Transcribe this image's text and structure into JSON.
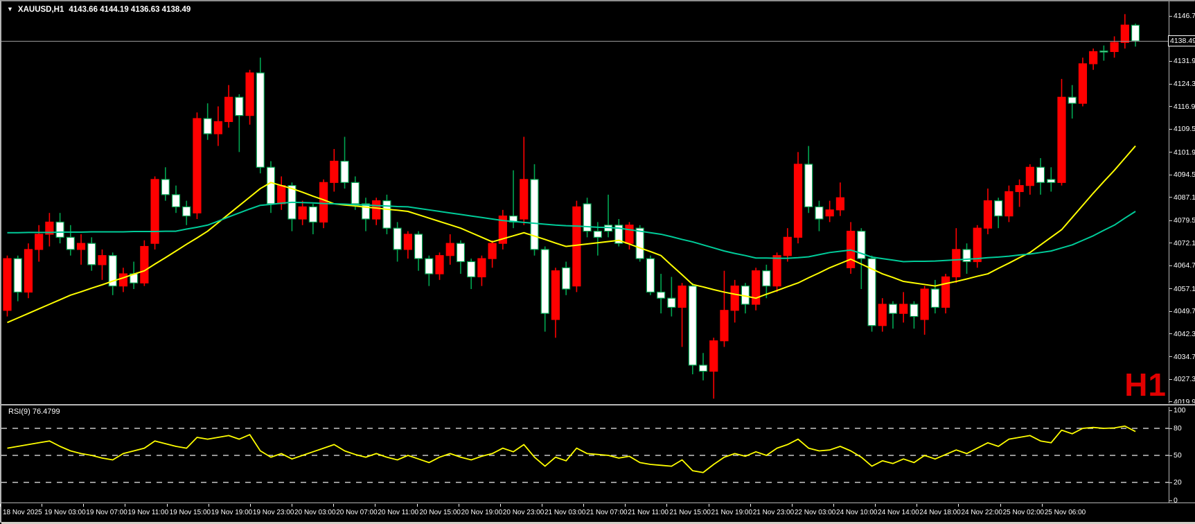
{
  "window": {
    "title": {
      "dropdown_icon": "▼",
      "symbol_period": "XAUUSD,H1",
      "ohlc": "4143.66 4144.19 4136.63 4138.49"
    },
    "watermark": "H1"
  },
  "rsi_panel": {
    "label": "RSI(9) 76.4799"
  },
  "price_box": "4138.49",
  "colors": {
    "background": "#000000",
    "bull_candle": "#ff0000",
    "bear_candle_fill": "#ffffff",
    "bear_candle_border": "#00a651",
    "ma_yellow": "#ffff00",
    "ma_green": "#00cc99",
    "rsi_line": "#ffff00",
    "level_dash": "#c8c8c8",
    "current_price_line": "#9b9b9b",
    "axis_text": "#ffffff",
    "watermark_red": "#e10000"
  },
  "chart_data": {
    "type": "candlestick",
    "symbol": "XAUUSD",
    "timeframe": "H1",
    "title": "XAUUSD,H1 4143.66 4144.19 4136.63 4138.49",
    "ohlc_quote": {
      "open": 4143.66,
      "high": 4144.19,
      "low": 4136.63,
      "close": 4138.49
    },
    "current_price": 4138.49,
    "note": "red body = up candle, white body with green border = down candle",
    "y_axis": {
      "tick_labels": [
        "4146.70",
        "4131.90",
        "4124.30",
        "4116.90",
        "4109.50",
        "4101.90",
        "4094.50",
        "4087.10",
        "4079.50",
        "4072.10",
        "4064.70",
        "4057.10",
        "4049.70",
        "4042.30",
        "4034.70",
        "4027.30",
        "4019.90"
      ],
      "visible_range": [
        4018.0,
        4151.0
      ]
    },
    "x_axis": {
      "labels": [
        "18 Nov 2025",
        "19 Nov 03:00",
        "19 Nov 07:00",
        "19 Nov 11:00",
        "19 Nov 15:00",
        "19 Nov 19:00",
        "19 Nov 23:00",
        "20 Nov 03:00",
        "20 Nov 07:00",
        "20 Nov 11:00",
        "20 Nov 15:00",
        "20 Nov 19:00",
        "20 Nov 23:00",
        "21 Nov 03:00",
        "21 Nov 07:00",
        "21 Nov 11:00",
        "21 Nov 15:00",
        "21 Nov 19:00",
        "21 Nov 23:00",
        "22 Nov 03:00",
        "24 Nov 10:00",
        "24 Nov 14:00",
        "24 Nov 18:00",
        "24 Nov 22:00",
        "25 Nov 02:00",
        "25 Nov 06:00"
      ]
    },
    "candles": [
      [
        4050,
        4068,
        4048,
        4067
      ],
      [
        4067,
        4068,
        4053,
        4056
      ],
      [
        4056,
        4072,
        4054,
        4070
      ],
      [
        4070,
        4078,
        4066,
        4075
      ],
      [
        4075,
        4082,
        4071,
        4079
      ],
      [
        4079,
        4082,
        4072,
        4074
      ],
      [
        4074,
        4078,
        4068,
        4070
      ],
      [
        4070,
        4075,
        4065,
        4072
      ],
      [
        4072,
        4074,
        4063,
        4065
      ],
      [
        4065,
        4070,
        4060,
        4068
      ],
      [
        4068,
        4069,
        4055,
        4058
      ],
      [
        4058,
        4064,
        4056,
        4062
      ],
      [
        4062,
        4066,
        4057,
        4059
      ],
      [
        4059,
        4073,
        4058,
        4071
      ],
      [
        4072,
        4094,
        4070,
        4093
      ],
      [
        4093,
        4097,
        4086,
        4088
      ],
      [
        4088,
        4091,
        4082,
        4084
      ],
      [
        4084,
        4086,
        4078,
        4081
      ],
      [
        4082,
        4115,
        4080,
        4113
      ],
      [
        4113,
        4118,
        4106,
        4108
      ],
      [
        4108,
        4117,
        4104,
        4112
      ],
      [
        4112,
        4124,
        4110,
        4120
      ],
      [
        4120,
        4121,
        4102,
        4114
      ],
      [
        4114,
        4129,
        4111,
        4128
      ],
      [
        4128,
        4133,
        4095,
        4097
      ],
      [
        4097,
        4099,
        4082,
        4085
      ],
      [
        4085,
        4094,
        4083,
        4091
      ],
      [
        4091,
        4092,
        4076,
        4080
      ],
      [
        4080,
        4086,
        4078,
        4084
      ],
      [
        4084,
        4085,
        4075,
        4079
      ],
      [
        4079,
        4093,
        4077,
        4092
      ],
      [
        4092,
        4103,
        4089,
        4099
      ],
      [
        4099,
        4107,
        4090,
        4092
      ],
      [
        4092,
        4094,
        4083,
        4085
      ],
      [
        4085,
        4087,
        4076,
        4080
      ],
      [
        4080,
        4087,
        4078,
        4086
      ],
      [
        4086,
        4088,
        4075,
        4077
      ],
      [
        4077,
        4079,
        4066,
        4070
      ],
      [
        4070,
        4076,
        4067,
        4075
      ],
      [
        4075,
        4076,
        4063,
        4067
      ],
      [
        4067,
        4068,
        4058,
        4062
      ],
      [
        4062,
        4069,
        4060,
        4068
      ],
      [
        4068,
        4075,
        4065,
        4072
      ],
      [
        4072,
        4073,
        4062,
        4066
      ],
      [
        4066,
        4067,
        4057,
        4061
      ],
      [
        4061,
        4068,
        4058,
        4067
      ],
      [
        4067,
        4073,
        4064,
        4072
      ],
      [
        4072,
        4083,
        4070,
        4081
      ],
      [
        4081,
        4096,
        4077,
        4079
      ],
      [
        4080,
        4107,
        4078,
        4093
      ],
      [
        4093,
        4098,
        4068,
        4070
      ],
      [
        4070,
        4071,
        4043,
        4049
      ],
      [
        4047,
        4064,
        4041,
        4063
      ],
      [
        4064,
        4066,
        4055,
        4057
      ],
      [
        4058,
        4086,
        4056,
        4084
      ],
      [
        4085,
        4087,
        4074,
        4076
      ],
      [
        4076,
        4079,
        4068,
        4074
      ],
      [
        4078,
        4088,
        4074,
        4076
      ],
      [
        4078,
        4080,
        4071,
        4072
      ],
      [
        4072,
        4079,
        4070,
        4078
      ],
      [
        4077,
        4078,
        4066,
        4067
      ],
      [
        4067,
        4068,
        4055,
        4056
      ],
      [
        4056,
        4062,
        4049,
        4054
      ],
      [
        4054,
        4061,
        4048,
        4051
      ],
      [
        4051,
        4059,
        4038,
        4058
      ],
      [
        4058,
        4059,
        4029,
        4032
      ],
      [
        4032,
        4036,
        4027,
        4030
      ],
      [
        4030,
        4041,
        4021,
        4040
      ],
      [
        4040,
        4063,
        4038,
        4050
      ],
      [
        4050,
        4060,
        4046,
        4058
      ],
      [
        4058,
        4059,
        4049,
        4052
      ],
      [
        4052,
        4064,
        4050,
        4063
      ],
      [
        4063,
        4065,
        4054,
        4058
      ],
      [
        4058,
        4069,
        4056,
        4068
      ],
      [
        4068,
        4077,
        4066,
        4074
      ],
      [
        4074,
        4102,
        4072,
        4098
      ],
      [
        4098,
        4104,
        4082,
        4084
      ],
      [
        4084,
        4086,
        4076,
        4080
      ],
      [
        4081,
        4086,
        4079,
        4083
      ],
      [
        4083,
        4092,
        4081,
        4087
      ],
      [
        4064,
        4079,
        4062,
        4076
      ],
      [
        4076,
        4077,
        4057,
        4067
      ],
      [
        4067,
        4068,
        4043,
        4045
      ],
      [
        4045,
        4054,
        4043,
        4052
      ],
      [
        4052,
        4053,
        4044,
        4049
      ],
      [
        4049,
        4056,
        4046,
        4052
      ],
      [
        4052,
        4053,
        4044,
        4048
      ],
      [
        4047,
        4058,
        4042,
        4057
      ],
      [
        4057,
        4060,
        4049,
        4051
      ],
      [
        4051,
        4062,
        4049,
        4061
      ],
      [
        4061,
        4077,
        4059,
        4070
      ],
      [
        4070,
        4072,
        4062,
        4066
      ],
      [
        4066,
        4078,
        4064,
        4077
      ],
      [
        4077,
        4090,
        4075,
        4086
      ],
      [
        4086,
        4087,
        4077,
        4081
      ],
      [
        4081,
        4091,
        4079,
        4089
      ],
      [
        4089,
        4093,
        4084,
        4091
      ],
      [
        4091,
        4098,
        4088,
        4097
      ],
      [
        4097,
        4100,
        4088,
        4092
      ],
      [
        4093,
        4097,
        4089,
        4092
      ],
      [
        4092,
        4126,
        4091,
        4120
      ],
      [
        4120,
        4124,
        4113,
        4118
      ],
      [
        4118,
        4133,
        4117,
        4131
      ],
      [
        4131,
        4136,
        4129,
        4135
      ],
      [
        4135.2,
        4137,
        4132,
        4135
      ],
      [
        4135,
        4140,
        4133,
        4138
      ],
      [
        4138,
        4147.3,
        4136,
        4143.7
      ],
      [
        4143.66,
        4144.19,
        4136.63,
        4138.49
      ]
    ],
    "overlays": [
      {
        "name": "ma-yellow",
        "color": "#ffff00",
        "values": [
          4046,
          4047.5,
          4049,
          4050.5,
          4052,
          4053.5,
          4055,
          4056.1,
          4057.3,
          4058.4,
          4059.6,
          4060.7,
          4061.9,
          4063,
          4065.2,
          4067.3,
          4069.5,
          4071.7,
          4073.8,
          4076,
          4078.8,
          4081.6,
          4084.4,
          4087.2,
          4090,
          4092,
          4091,
          4090,
          4088.8,
          4087.5,
          4086.3,
          4085,
          4084.6,
          4084.3,
          4083.9,
          4083.6,
          4083.2,
          4082.9,
          4082.5,
          4081.4,
          4080.3,
          4079.2,
          4078.1,
          4077,
          4075.5,
          4074,
          4072.5,
          4073.5,
          4074.5,
          4075.5,
          4074.4,
          4073.3,
          4072.1,
          4071,
          4071.4,
          4071.8,
          4072.2,
          4072.6,
          4073,
          4071.8,
          4070.5,
          4069.3,
          4068,
          4064.8,
          4061.7,
          4058.5,
          4057.7,
          4056.8,
          4056,
          4055.3,
          4054.7,
          4054,
          4055.3,
          4056.5,
          4057.8,
          4059,
          4060.7,
          4062.3,
          4064,
          4065.4,
          4066.8,
          4065.2,
          4063.6,
          4062,
          4060.8,
          4059.5,
          4059,
          4058.5,
          4058,
          4058.8,
          4059.5,
          4060.3,
          4061.2,
          4062,
          4063.8,
          4065.5,
          4067.3,
          4069,
          4071.5,
          4074,
          4076.5,
          4080.5,
          4084.5,
          4088.5,
          4092.3,
          4096,
          4100,
          4104
        ]
      },
      {
        "name": "ma-green",
        "color": "#00cc99",
        "values": [
          4075.5,
          4075.5,
          4075.6,
          4075.6,
          4075.6,
          4075.7,
          4075.7,
          4075.7,
          4075.8,
          4075.8,
          4075.8,
          4075.8,
          4075.9,
          4075.9,
          4075.9,
          4076,
          4076,
          4076.7,
          4077.3,
          4078,
          4079.3,
          4080.7,
          4082,
          4083.3,
          4084.5,
          4084.8,
          4085.2,
          4085.5,
          4085.4,
          4085.3,
          4085.1,
          4085,
          4084.9,
          4084.7,
          4084.6,
          4084.4,
          4084.3,
          4084.1,
          4084,
          4083.5,
          4083,
          4082.5,
          4082,
          4081.5,
          4081,
          4080.5,
          4080,
          4079.5,
          4079.2,
          4078.9,
          4078.6,
          4078.3,
          4078,
          4077.8,
          4077.7,
          4077.5,
          4077.3,
          4077.2,
          4077,
          4076.5,
          4076,
          4075.5,
          4075,
          4074.2,
          4073.3,
          4072.5,
          4071.5,
          4070.5,
          4069.5,
          4068.7,
          4068,
          4067.2,
          4067.2,
          4067.1,
          4067.1,
          4067.3,
          4067.6,
          4068.3,
          4069,
          4069.4,
          4069.8,
          4068.7,
          4067.5,
          4067,
          4066.5,
          4066,
          4066.1,
          4066.1,
          4066.2,
          4066.4,
          4066.6,
          4066.8,
          4067,
          4067.3,
          4067.5,
          4067.8,
          4068.2,
          4068.5,
          4069,
          4069.5,
          4070.5,
          4071.5,
          4073,
          4074.5,
          4076.3,
          4078,
          4080.3,
          4082.5
        ]
      }
    ],
    "indicator_pane": {
      "name": "RSI",
      "period": 9,
      "current_value": 76.4799,
      "label": "RSI(9) 76.4799",
      "scale": [
        0,
        100
      ],
      "levels": [
        80,
        50,
        20
      ],
      "axis_labels": [
        "100",
        "80",
        "50",
        "20",
        "0"
      ],
      "values": [
        58,
        60,
        62,
        64,
        66,
        60,
        55,
        52,
        50,
        47,
        45,
        52,
        55,
        58,
        66,
        63,
        60,
        58,
        70,
        68,
        70,
        72,
        68,
        73,
        55,
        48,
        52,
        46,
        50,
        54,
        58,
        62,
        55,
        51,
        48,
        52,
        48,
        45,
        50,
        46,
        42,
        48,
        52,
        48,
        45,
        49,
        52,
        58,
        54,
        62,
        48,
        38,
        48,
        44,
        58,
        52,
        51,
        50,
        47,
        49,
        42,
        40,
        39,
        38,
        45,
        33,
        31,
        40,
        48,
        52,
        49,
        54,
        50,
        58,
        62,
        68,
        58,
        55,
        56,
        60,
        55,
        48,
        38,
        44,
        41,
        46,
        42,
        50,
        46,
        51,
        56,
        52,
        58,
        64,
        60,
        68,
        70,
        72,
        66,
        64,
        78,
        74,
        80,
        81,
        80,
        80.5,
        82.5,
        76.48
      ]
    }
  }
}
